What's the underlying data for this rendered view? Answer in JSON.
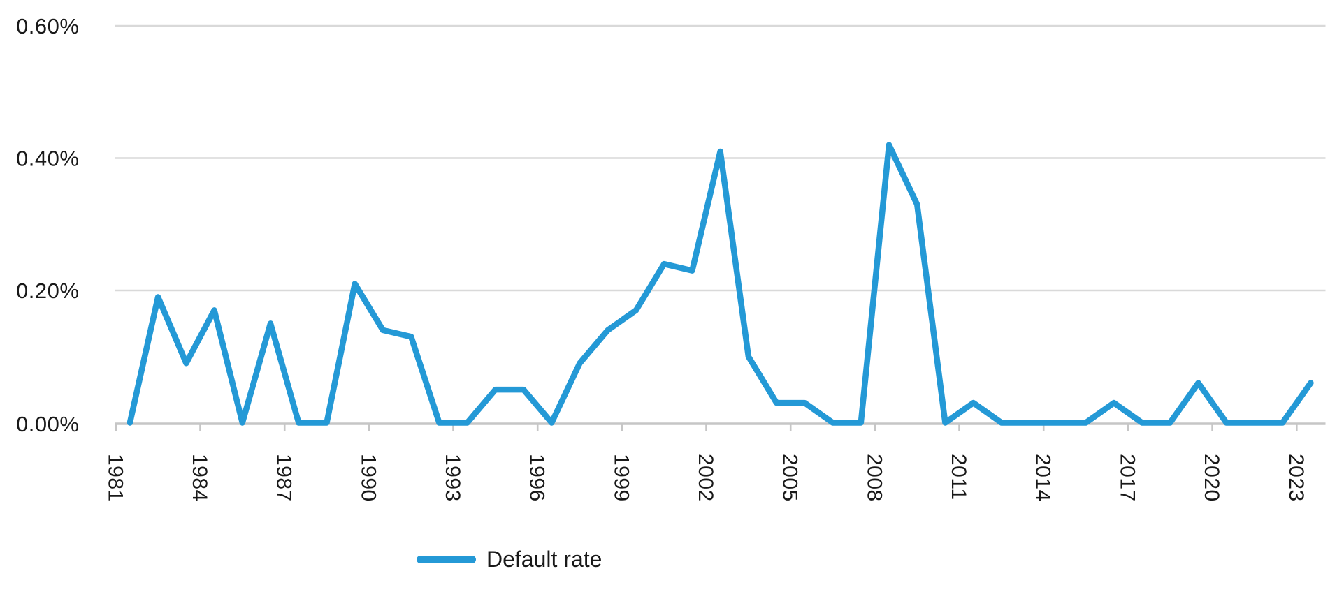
{
  "chart_data": {
    "type": "line",
    "title": "",
    "xlabel": "",
    "ylabel": "",
    "grid": "horizontal",
    "legend_position": "bottom",
    "x": [
      1981,
      1982,
      1983,
      1984,
      1985,
      1986,
      1987,
      1988,
      1989,
      1990,
      1991,
      1992,
      1993,
      1994,
      1995,
      1996,
      1997,
      1998,
      1999,
      2000,
      2001,
      2002,
      2003,
      2004,
      2005,
      2006,
      2007,
      2008,
      2009,
      2010,
      2011,
      2012,
      2013,
      2014,
      2015,
      2016,
      2017,
      2018,
      2019,
      2020,
      2021,
      2022,
      2023
    ],
    "series": [
      {
        "name": "Default rate",
        "color": "#2499d6",
        "values": [
          0.0,
          0.19,
          0.09,
          0.17,
          0.0,
          0.15,
          0.0,
          0.0,
          0.21,
          0.14,
          0.13,
          0.0,
          0.0,
          0.05,
          0.05,
          0.0,
          0.09,
          0.14,
          0.17,
          0.24,
          0.23,
          0.41,
          0.1,
          0.03,
          0.03,
          0.0,
          0.0,
          0.42,
          0.33,
          0.0,
          0.03,
          0.0,
          0.0,
          0.0,
          0.0,
          0.03,
          0.0,
          0.0,
          0.06,
          0.0,
          0.0,
          0.0,
          0.06
        ]
      }
    ],
    "ylim": [
      0.0,
      0.6
    ],
    "y_ticks": [
      {
        "value": 0.6,
        "label": "0.60%"
      },
      {
        "value": 0.4,
        "label": "0.40%"
      },
      {
        "value": 0.2,
        "label": "0.20%"
      },
      {
        "value": 0.0,
        "label": "0.00%"
      }
    ],
    "x_tick_labels": [
      "1981",
      "1984",
      "1987",
      "1990",
      "1993",
      "1996",
      "1999",
      "2002",
      "2005",
      "2008",
      "2011",
      "2014",
      "2017",
      "2020",
      "2023"
    ],
    "units": "percent"
  },
  "legend": {
    "label": "Default rate"
  },
  "colors": {
    "line": "#2499d6",
    "gridline": "#d9d9d9",
    "axis": "#c6c6c6",
    "text": "#191919",
    "background": "#ffffff"
  }
}
